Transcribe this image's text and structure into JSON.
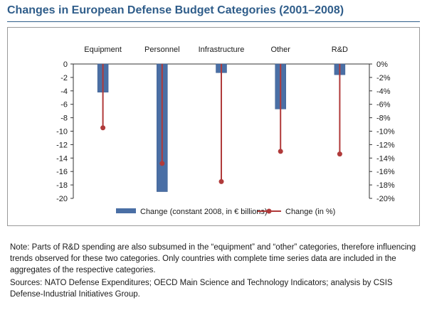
{
  "title": "Changes in European Defense Budget Categories (2001–2008)",
  "chart_data": {
    "type": "bar",
    "categories": [
      "Equipment",
      "Personnel",
      "Infrastructure",
      "Other",
      "R&D"
    ],
    "series": [
      {
        "name": "Change (constant 2008, in € billions)",
        "type": "bar",
        "axis": "left",
        "values": [
          -4.2,
          -19.0,
          -1.3,
          -6.7,
          -1.6
        ],
        "color": "#4a6fa5"
      },
      {
        "name": "Change (in %)",
        "type": "line-drop",
        "axis": "right",
        "values": [
          -9.5,
          -14.8,
          -17.5,
          -13.0,
          -13.4
        ],
        "color": "#b03a3a"
      }
    ],
    "y_left": {
      "ylim": [
        -20,
        0
      ],
      "ticks": [
        "0",
        "-2",
        "-4",
        "-6",
        "-8",
        "-10",
        "-12",
        "-14",
        "-16",
        "-18",
        "-20"
      ]
    },
    "y_right": {
      "ylim": [
        -20,
        0
      ],
      "ticks": [
        "0%",
        "-2%",
        "-4%",
        "-6%",
        "-8%",
        "-10%",
        "-12%",
        "-14%",
        "-16%",
        "-18%",
        "-20%"
      ]
    },
    "legend_position": "bottom",
    "grid": false
  },
  "notes": {
    "note": "Note: Parts of R&D spending are also subsumed in the “equipment” and “other” categories, therefore influencing trends observed for these two categories. Only countries with complete time series data are included in the aggregates of the respective categories.",
    "sources": "Sources: NATO Defense Expenditures; OECD Main Science and Technology Indicators; analysis by CSIS Defense-Industrial Initiatives Group."
  }
}
